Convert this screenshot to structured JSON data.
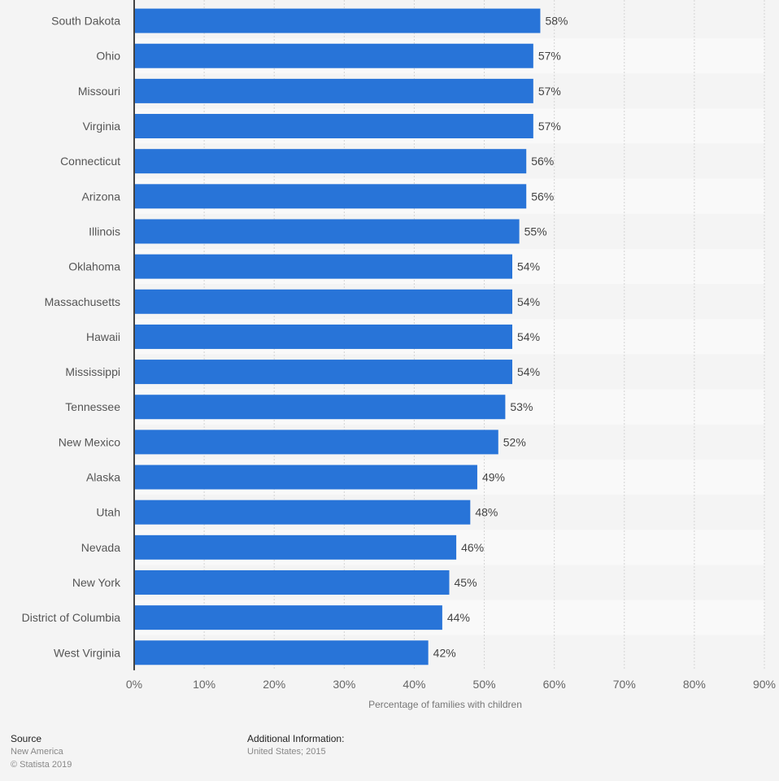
{
  "chart_data": {
    "type": "bar",
    "orientation": "horizontal",
    "categories": [
      "South Dakota",
      "Ohio",
      "Missouri",
      "Virginia",
      "Connecticut",
      "Arizona",
      "Illinois",
      "Oklahoma",
      "Massachusetts",
      "Hawaii",
      "Mississippi",
      "Tennessee",
      "New Mexico",
      "Alaska",
      "Utah",
      "Nevada",
      "New York",
      "District of Columbia",
      "West Virginia"
    ],
    "values": [
      58,
      57,
      57,
      57,
      56,
      56,
      55,
      54,
      54,
      54,
      54,
      53,
      52,
      49,
      48,
      46,
      45,
      44,
      42
    ],
    "value_labels": [
      "58%",
      "57%",
      "57%",
      "57%",
      "56%",
      "56%",
      "55%",
      "54%",
      "54%",
      "54%",
      "54%",
      "53%",
      "52%",
      "49%",
      "48%",
      "46%",
      "45%",
      "44%",
      "42%"
    ],
    "xlabel": "Percentage of families with children",
    "ylabel": "",
    "xlim": [
      0,
      90
    ],
    "xticks": [
      0,
      10,
      20,
      30,
      40,
      50,
      60,
      70,
      80,
      90
    ],
    "xtick_labels": [
      "0%",
      "10%",
      "20%",
      "30%",
      "40%",
      "50%",
      "60%",
      "70%",
      "80%",
      "90%"
    ],
    "grid": true,
    "bar_color": "#2874d8"
  },
  "footer": {
    "source_title": "Source",
    "source_name": "New America",
    "copyright": "© Statista 2019",
    "info_title": "Additional Information:",
    "info_text": "United States; 2015"
  }
}
